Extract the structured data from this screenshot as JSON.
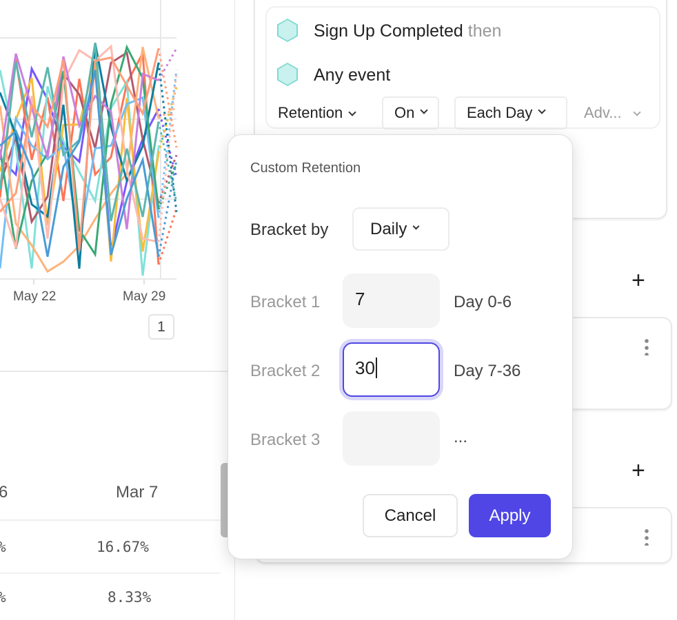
{
  "chart": {
    "x_ticks": [
      "May 22",
      "May 29"
    ],
    "page_badge": "1",
    "series_colors": [
      "#7856ff",
      "#ff7557",
      "#80e1d9",
      "#f8bc3b",
      "#b2596e",
      "#72bef4",
      "#ffb27a",
      "#0d7ea0",
      "#3ba974",
      "#febbb2",
      "#cb80dc",
      "#5bb7af",
      "#ff9e7a",
      "#4a9cd6"
    ]
  },
  "table": {
    "headers": [
      "6",
      "Mar 7"
    ],
    "rows": [
      [
        "%",
        "16.67%"
      ],
      [
        "%",
        "8.33%"
      ]
    ]
  },
  "query": {
    "event1": "Sign Up Completed",
    "then": "then",
    "event2": "Any event",
    "retention_label": "Retention",
    "on_label": "On",
    "each_day_label": "Each Day",
    "advanced_label": "Adv..."
  },
  "popup": {
    "title": "Custom Retention",
    "bracket_by_label": "Bracket by",
    "bracket_by_value": "Daily",
    "brackets": [
      {
        "label": "Bracket 1",
        "value": "7",
        "range": "Day 0-6"
      },
      {
        "label": "Bracket 2",
        "value": "30",
        "range": "Day 7-36"
      },
      {
        "label": "Bracket 3",
        "value": "",
        "range": "..."
      }
    ],
    "cancel": "Cancel",
    "apply": "Apply"
  },
  "colors": {
    "accent": "#4f46e5",
    "hex_icon": "#7fdad3"
  }
}
